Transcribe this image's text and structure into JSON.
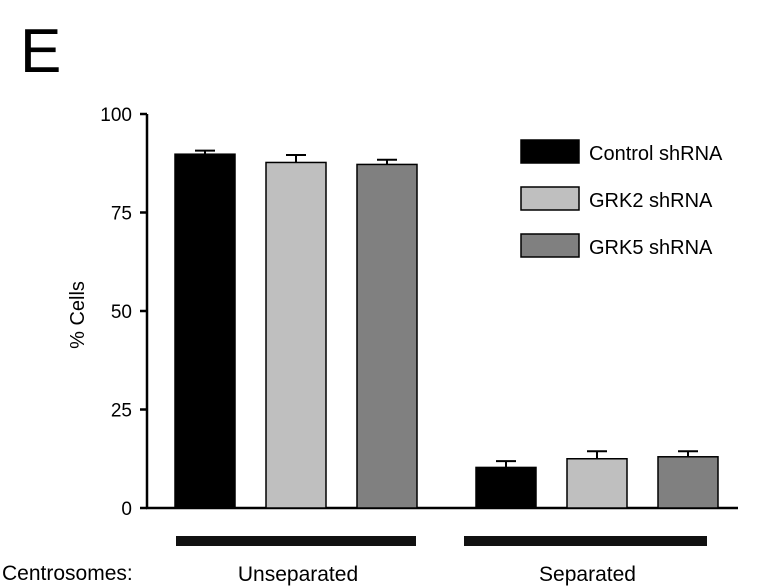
{
  "panel_label": "E",
  "chart_data": {
    "type": "bar",
    "categories": [
      "Unseparated",
      "Separated"
    ],
    "category_row_label": "Centrosomes:",
    "ylabel": "% Cells",
    "xlabel": "",
    "ylim": [
      0,
      100
    ],
    "yticks": [
      "0",
      "25",
      "50",
      "75",
      "100"
    ],
    "grid": false,
    "legend_position": "top-right",
    "series": [
      {
        "name": "Control shRNA",
        "color": "#000000",
        "values": [
          89.8,
          10.3
        ],
        "errors": [
          0.9,
          1.6
        ]
      },
      {
        "name": "GRK2 shRNA",
        "color": "#bfbfbf",
        "values": [
          87.7,
          12.5
        ],
        "errors": [
          1.9,
          1.9
        ]
      },
      {
        "name": "GRK5 shRNA",
        "color": "#808080",
        "values": [
          87.2,
          13.0
        ],
        "errors": [
          1.2,
          1.4
        ]
      }
    ]
  }
}
